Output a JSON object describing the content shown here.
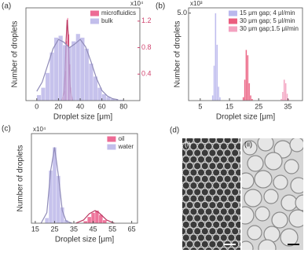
{
  "chart_data": [
    {
      "type": "histogram",
      "panel_label": "(a)",
      "xlabel": "Droplet size [μm]",
      "ylabel": "Number of droplets",
      "xlim": [
        -10,
        95
      ],
      "xticks": [
        0,
        20,
        40,
        60,
        80
      ],
      "ylim": [
        0,
        100
      ],
      "y2lim": [
        0,
        1.4
      ],
      "y2ticks": [
        0.4,
        0.8,
        1.2
      ],
      "y2_exponent": "x10⁴",
      "legend": "upper right",
      "series": [
        {
          "name": "microfluidics",
          "color": "#e8467a",
          "axis": "y2",
          "bins": [
            24,
            25,
            26,
            27,
            28,
            29,
            30,
            31,
            32,
            33
          ],
          "values": [
            0.05,
            0.15,
            0.45,
            0.9,
            1.25,
            1.0,
            0.55,
            0.2,
            0.06
          ],
          "fit": {
            "x": [
              23,
              25,
              26,
              27,
              28,
              29,
              30,
              31,
              33
            ],
            "y": [
              0,
              0.12,
              0.4,
              0.9,
              1.22,
              1.0,
              0.5,
              0.15,
              0
            ]
          }
        },
        {
          "name": "bulk",
          "color": "#b3aee6",
          "axis": "y",
          "bins": [
            0,
            4,
            8,
            12,
            16,
            20,
            24,
            28,
            32,
            36,
            40,
            44,
            48,
            52,
            56,
            60,
            64,
            68,
            72,
            76,
            80
          ],
          "values": [
            6,
            14,
            30,
            52,
            68,
            70,
            60,
            58,
            64,
            72,
            68,
            56,
            40,
            26,
            14,
            7,
            4,
            2,
            1,
            1
          ],
          "fit": {
            "x": [
              0,
              5,
              10,
              15,
              20,
              25,
              30,
              35,
              40,
              45,
              50,
              55,
              60,
              65,
              70,
              75
            ],
            "y": [
              10,
              20,
              38,
              56,
              66,
              63,
              57,
              61,
              66,
              58,
              42,
              24,
              11,
              5,
              2,
              1
            ]
          }
        }
      ]
    },
    {
      "type": "histogram",
      "panel_label": "(b)",
      "xlabel": "Droplet size [μm]",
      "ylabel": "Number of droplets",
      "xlim": [
        1,
        40
      ],
      "xticks": [
        5,
        15,
        25,
        35
      ],
      "ylim": [
        0,
        5.3
      ],
      "yticks": [
        {
          "value": 5,
          "label": "5.0"
        }
      ],
      "y_exponent": "x10³",
      "legend": "upper right",
      "series": [
        {
          "name": "15 μm gap; 4 μl/min",
          "color": "#a9a6e8",
          "axis": "y",
          "bins": [
            9,
            9.5,
            10,
            10.5,
            11,
            11.5,
            12
          ],
          "values": [
            0.3,
            2.0,
            5.0,
            3.2,
            0.8,
            0.2
          ]
        },
        {
          "name": "30 μm gap; 5 μl/min",
          "color": "#e6345f",
          "axis": "y",
          "bins": [
            19.5,
            20,
            20.5,
            21,
            21.5,
            22,
            22.5,
            23
          ],
          "values": [
            0.2,
            1.2,
            2.9,
            2.6,
            1.0,
            0.3,
            0.1
          ]
        },
        {
          "name": "30 μm gap;1.5 μl/min",
          "color": "#f08bb0",
          "axis": "y",
          "bins": [
            32.5,
            33,
            33.5,
            34,
            34.5,
            35,
            35.5
          ],
          "values": [
            0.1,
            0.5,
            1.2,
            1.0,
            0.4,
            0.1
          ]
        }
      ]
    },
    {
      "type": "histogram",
      "panel_label": "(c)",
      "xlabel": "Droplet size [μm]",
      "ylabel": "Number of droplets",
      "xlim": [
        13,
        68
      ],
      "xticks": [
        15,
        25,
        35,
        45,
        55,
        65
      ],
      "ylim": [
        0,
        0.85
      ],
      "y_exponent": "x10⁴",
      "legend": "upper right",
      "series": [
        {
          "name": "oil",
          "color": "#e8467a",
          "axis": "y",
          "bins": [
            40,
            42,
            44,
            46,
            48,
            50,
            52
          ],
          "values": [
            0.02,
            0.06,
            0.1,
            0.12,
            0.08,
            0.03
          ],
          "fit": {
            "x": [
              36,
              40,
              43,
              46,
              48,
              52,
              56
            ],
            "y": [
              0,
              0.03,
              0.09,
              0.12,
              0.1,
              0.03,
              0
            ]
          }
        },
        {
          "name": "water",
          "color": "#b3aee6",
          "axis": "y",
          "bins": [
            20,
            22,
            24,
            26,
            28,
            30,
            32
          ],
          "values": [
            0.05,
            0.5,
            0.72,
            0.45,
            0.15,
            0.03
          ],
          "fit": {
            "x": [
              18,
              21,
              23,
              25,
              27,
              29,
              31,
              34
            ],
            "y": [
              0,
              0.1,
              0.5,
              0.72,
              0.45,
              0.12,
              0.02,
              0
            ]
          }
        }
      ]
    }
  ],
  "image_panel": {
    "label": "(d)",
    "sub_labels": [
      "(i)",
      "(ii)"
    ]
  }
}
